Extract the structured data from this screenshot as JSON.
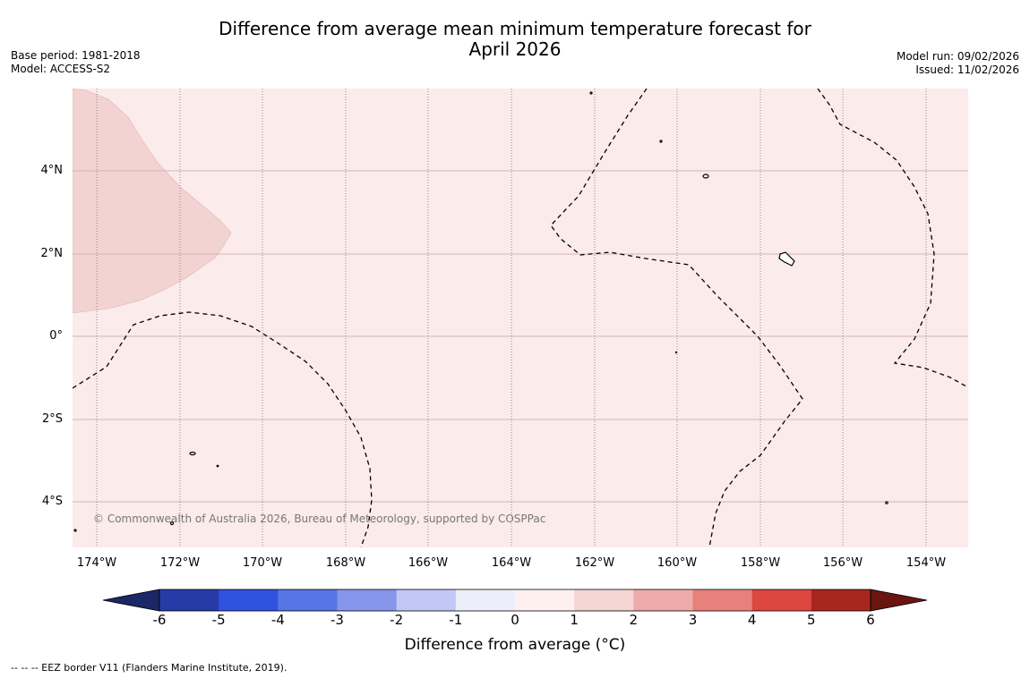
{
  "title": {
    "line1": "Difference from average mean minimum temperature forecast for",
    "line2": "April 2026"
  },
  "meta_left": {
    "base_period": "Base period: 1981-2018",
    "model": "Model: ACCESS-S2"
  },
  "meta_right": {
    "model_run": "Model run: 09/02/2026",
    "issued": "Issued: 11/02/2026"
  },
  "map": {
    "latitude_labels": [
      "4°N",
      "2°N",
      "0°",
      "2°S",
      "4°S"
    ],
    "longitude_labels": [
      "174°W",
      "172°W",
      "170°W",
      "168°W",
      "166°W",
      "164°W",
      "162°W",
      "160°W",
      "158°W",
      "156°W",
      "154°W"
    ],
    "copyright": "© Commonwealth of Australia 2026, Bureau of Meteorology, supported by COSPPac",
    "colors": {
      "band_0_1": "#fbebea",
      "band_1_2": "#f3d3d2",
      "land": "#000000",
      "eez": "#000000"
    }
  },
  "colorbar": {
    "title": "Difference from average (°C)",
    "ticks": [
      "-6",
      "-5",
      "-4",
      "-3",
      "-2",
      "-1",
      "0",
      "1",
      "2",
      "3",
      "4",
      "5",
      "6"
    ],
    "colors": [
      "#273ba7",
      "#2f52e0",
      "#5875e5",
      "#8596eb",
      "#c1c8f5",
      "#eceffa",
      "#fdf0ee",
      "#f5d5d4",
      "#efaba9",
      "#e8807c",
      "#dc473f",
      "#a7271f"
    ],
    "under_color": "#1b2766",
    "over_color": "#6b1510"
  },
  "footer": {
    "legend": "--  --  -- EEZ border V11 (Flanders Marine Institute, 2019)."
  }
}
